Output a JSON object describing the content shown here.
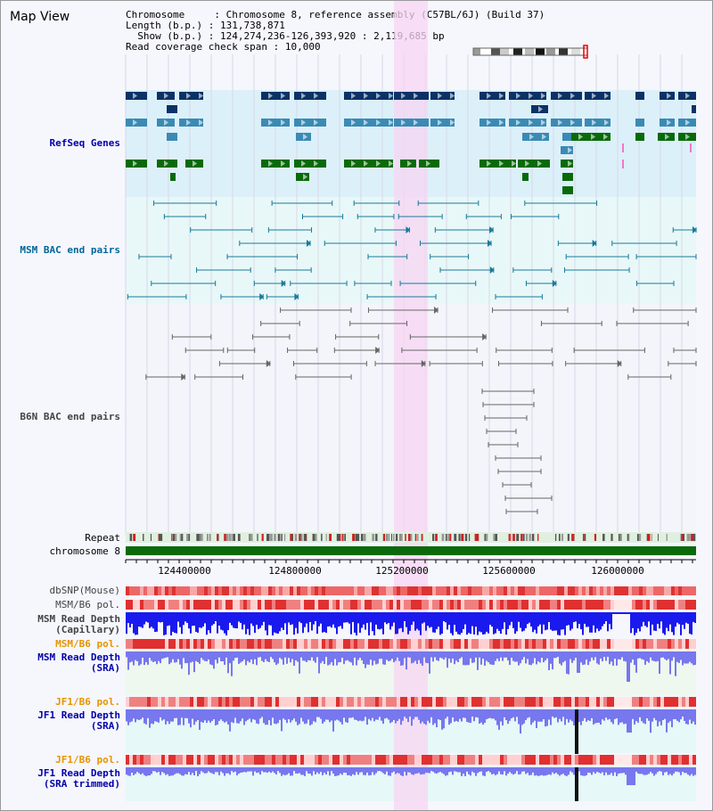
{
  "title": "Map View",
  "header": {
    "chromosome_key": "Chromosome",
    "chromosome_val": "Chromosome 8, reference assembly (C57BL/6J) (Build 37)",
    "length_key": "Length (b.p.)",
    "length_val": "131,738,871",
    "show_key": "Show (b.p.)",
    "show_val": "124,274,236-126,393,920 : 2,119,685 bp",
    "span_key": "Read coverage check span",
    "span_val": "10,000"
  },
  "tracks": {
    "refseq": "RefSeq Genes",
    "msm_bac": "MSM BAC end pairs",
    "b6n_bac": "B6N BAC end pairs",
    "repeat": "Repeat",
    "chromosome": "chromosome 8",
    "dbsnp": "dbSNP(Mouse)",
    "msm_pol1": "MSM/B6 pol.",
    "msm_depth_cap1": "MSM Read Depth",
    "msm_depth_cap2": "(Capillary)",
    "msm_pol2": "MSM/B6 pol.",
    "msm_depth_sra1": "MSM Read Depth",
    "msm_depth_sra2": "(SRA)",
    "jf1_pol1": "JF1/B6 pol.",
    "jf1_depth_sra1": "JF1 Read Depth",
    "jf1_depth_sra2": "(SRA)",
    "jf1_pol2": "JF1/B6 pol.",
    "jf1_depth_trim1": "JF1 Read Depth",
    "jf1_depth_trim2": "(SRA trimmed)"
  },
  "axis": {
    "ticks": [
      "124400000",
      "124800000",
      "125200000",
      "125600000",
      "126000000"
    ]
  },
  "colors": {
    "refseq_label": "#0000aa",
    "msm_label": "#006699",
    "b6n_label": "#444444",
    "pol_orange": "#e69500",
    "highlight": "#f7d6f3",
    "gene_dark": "#0b3266",
    "gene_teal": "#3a8ab4",
    "gene_green": "#0a6a0a",
    "depth_blue": "#1a1aee",
    "depth_lavender": "#7777ee"
  }
}
